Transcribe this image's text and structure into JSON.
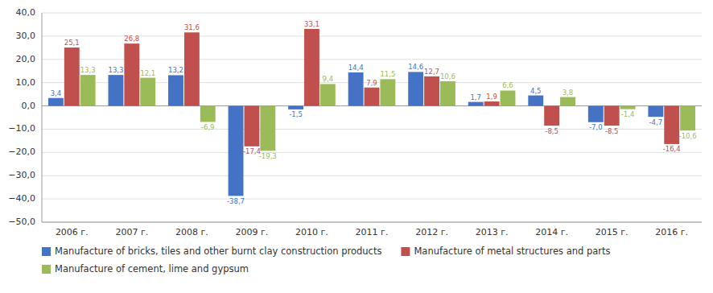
{
  "chart_data": {
    "type": "bar",
    "categories": [
      "2006 г.",
      "2007 г.",
      "2008 г.",
      "2009 г.",
      "2010 г.",
      "2011 г.",
      "2012 г.",
      "2013 г.",
      "2014 г.",
      "2015 г.",
      "2016 г."
    ],
    "series": [
      {
        "name": "Manufacture of bricks, tiles and other burnt clay construction products",
        "color": "#4472C4",
        "values": [
          3.4,
          13.3,
          13.2,
          -38.7,
          -1.5,
          14.4,
          14.6,
          1.7,
          4.5,
          -7.0,
          -4.7
        ],
        "value_labels": [
          "3,4",
          "13,3",
          "13,2",
          "-38,7",
          "-1,5",
          "14,4",
          "14,6",
          "1,7",
          "4,5",
          "-7,0",
          "-4,7"
        ]
      },
      {
        "name": "Manufacture of metal structures and parts",
        "color": "#C0504D",
        "values": [
          25.1,
          26.8,
          31.6,
          -17.4,
          33.1,
          7.9,
          12.7,
          1.9,
          -8.5,
          -8.5,
          -16.4
        ],
        "value_labels": [
          "25,1",
          "26,8",
          "31,6",
          "-17,4",
          "33,1",
          "7,9",
          "12,7",
          "1,9",
          "-8,5",
          "-8,5",
          "-16,4"
        ]
      },
      {
        "name": "Manufacture of cement, lime and gypsum",
        "color": "#9BBB59",
        "values": [
          13.3,
          12.1,
          -6.9,
          -19.3,
          9.4,
          11.5,
          10.6,
          6.6,
          3.8,
          -1.4,
          -10.6
        ],
        "value_labels": [
          "13,3",
          "12,1",
          "-6,9",
          "-19,3",
          "9,4",
          "11,5",
          "10,6",
          "6,6",
          "3,8",
          "-1,4",
          "-10,6"
        ]
      }
    ],
    "ylim": [
      -50,
      40
    ],
    "yticks": [
      {
        "value": -50,
        "label": "−50,0"
      },
      {
        "value": -40,
        "label": "−40,0"
      },
      {
        "value": -30,
        "label": "−30,0"
      },
      {
        "value": -20,
        "label": "−20,0"
      },
      {
        "value": -10,
        "label": "−10,0"
      },
      {
        "value": 0,
        "label": "0,0"
      },
      {
        "value": 10,
        "label": "10,0"
      },
      {
        "value": 20,
        "label": "20,0"
      },
      {
        "value": 30,
        "label": "30,0"
      },
      {
        "value": 40,
        "label": "40,0"
      }
    ],
    "grid": true,
    "data_labels": true,
    "legend": "bottom"
  }
}
